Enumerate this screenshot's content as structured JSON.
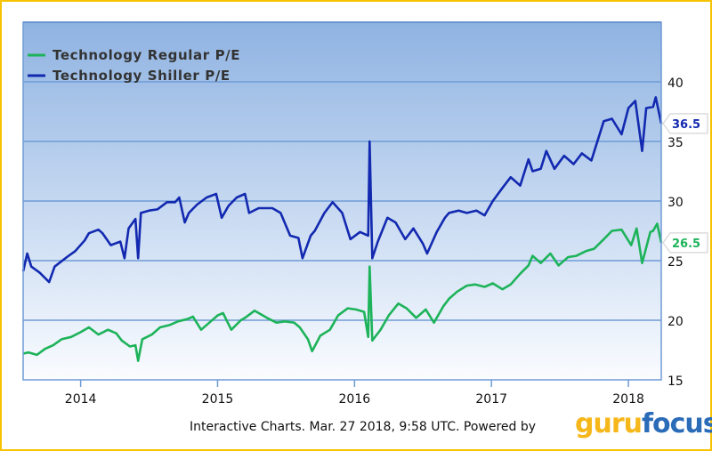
{
  "chart_data": {
    "type": "line",
    "title": "",
    "xlabel": "",
    "ylabel": "",
    "xlim": [
      2013.58,
      2018.24
    ],
    "ylim": [
      15,
      45
    ],
    "x_ticks": [
      2014,
      2015,
      2016,
      2017,
      2018
    ],
    "x_tick_labels": [
      "2014",
      "2015",
      "2016",
      "2017",
      "2018"
    ],
    "y_ticks": [
      15,
      20,
      25,
      30,
      35,
      40
    ],
    "y_tick_labels": [
      "15",
      "20",
      "25",
      "30",
      "35",
      "40"
    ],
    "grid": true,
    "legend_position": "top-left",
    "series": [
      {
        "name": "Technology Regular P/E",
        "color": "#1db35a",
        "last_value_label": "26.5",
        "x": [
          2013.58,
          2013.62,
          2013.68,
          2013.74,
          2013.8,
          2013.86,
          2013.93,
          2014.0,
          2014.06,
          2014.13,
          2014.2,
          2014.26,
          2014.3,
          2014.36,
          2014.4,
          2014.42,
          2014.45,
          2014.52,
          2014.58,
          2014.65,
          2014.71,
          2014.78,
          2014.82,
          2014.88,
          2014.95,
          2015.0,
          2015.04,
          2015.1,
          2015.17,
          2015.2,
          2015.27,
          2015.36,
          2015.43,
          2015.49,
          2015.56,
          2015.6,
          2015.66,
          2015.69,
          2015.75,
          2015.82,
          2015.88,
          2015.95,
          2016.01,
          2016.07,
          2016.1,
          2016.11,
          2016.13,
          2016.19,
          2016.25,
          2016.32,
          2016.38,
          2016.45,
          2016.49,
          2016.52,
          2016.58,
          2016.65,
          2016.69,
          2016.75,
          2016.82,
          2016.88,
          2016.95,
          2017.01,
          2017.08,
          2017.14,
          2017.21,
          2017.27,
          2017.3,
          2017.36,
          2017.43,
          2017.49,
          2017.56,
          2017.62,
          2017.69,
          2017.75,
          2017.82,
          2017.88,
          2017.95,
          2018.02,
          2018.06,
          2018.1,
          2018.16,
          2018.18,
          2018.21,
          2018.24
        ],
        "values": [
          17.2,
          17.3,
          17.1,
          17.6,
          17.9,
          18.4,
          18.6,
          19.0,
          19.4,
          18.8,
          19.2,
          18.9,
          18.3,
          17.8,
          17.9,
          16.6,
          18.4,
          18.8,
          19.4,
          19.6,
          19.9,
          20.1,
          20.3,
          19.2,
          19.9,
          20.4,
          20.6,
          19.2,
          20.0,
          20.2,
          20.8,
          20.2,
          19.8,
          19.9,
          19.8,
          19.4,
          18.4,
          17.4,
          18.7,
          19.2,
          20.4,
          21.0,
          20.9,
          20.7,
          18.6,
          24.5,
          18.3,
          19.2,
          20.4,
          21.4,
          21.0,
          20.2,
          20.6,
          20.9,
          19.8,
          21.2,
          21.8,
          22.4,
          22.9,
          23.0,
          22.8,
          23.1,
          22.6,
          23.0,
          23.9,
          24.6,
          25.4,
          24.8,
          25.6,
          24.6,
          25.3,
          25.4,
          25.8,
          26.0,
          26.8,
          27.5,
          27.6,
          26.3,
          27.7,
          24.8,
          27.4,
          27.5,
          28.1,
          26.5
        ]
      },
      {
        "name": "Technology Shiller P/E",
        "color": "#1229b0",
        "last_value_label": "36.5",
        "x": [
          2013.58,
          2013.61,
          2013.64,
          2013.7,
          2013.77,
          2013.81,
          2013.9,
          2013.96,
          2014.03,
          2014.06,
          2014.13,
          2014.16,
          2014.22,
          2014.29,
          2014.32,
          2014.35,
          2014.4,
          2014.42,
          2014.44,
          2014.5,
          2014.56,
          2014.63,
          2014.69,
          2014.72,
          2014.76,
          2014.79,
          2014.85,
          2014.92,
          2014.99,
          2015.03,
          2015.08,
          2015.14,
          2015.2,
          2015.23,
          2015.3,
          2015.4,
          2015.46,
          2015.53,
          2015.59,
          2015.62,
          2015.68,
          2015.71,
          2015.78,
          2015.84,
          2015.91,
          2015.97,
          2016.04,
          2016.1,
          2016.11,
          2016.13,
          2016.17,
          2016.24,
          2016.3,
          2016.37,
          2016.43,
          2016.5,
          2016.53,
          2016.6,
          2016.66,
          2016.69,
          2016.76,
          2016.82,
          2016.89,
          2016.95,
          2017.01,
          2017.08,
          2017.14,
          2017.21,
          2017.27,
          2017.3,
          2017.36,
          2017.4,
          2017.46,
          2017.53,
          2017.6,
          2017.66,
          2017.73,
          2017.76,
          2017.82,
          2017.88,
          2017.95,
          2018.0,
          2018.05,
          2018.1,
          2018.13,
          2018.18,
          2018.2,
          2018.24
        ],
        "values": [
          24.1,
          25.6,
          24.5,
          24.0,
          23.2,
          24.5,
          25.3,
          25.8,
          26.7,
          27.3,
          27.6,
          27.3,
          26.3,
          26.6,
          25.2,
          27.7,
          28.5,
          25.2,
          29.0,
          29.2,
          29.3,
          29.9,
          29.9,
          30.3,
          28.2,
          29.0,
          29.7,
          30.3,
          30.6,
          28.6,
          29.6,
          30.3,
          30.6,
          29.0,
          29.4,
          29.4,
          29.0,
          27.1,
          26.9,
          25.2,
          27.1,
          27.5,
          29.0,
          29.9,
          29.0,
          26.8,
          27.4,
          27.1,
          35.0,
          25.2,
          26.6,
          28.6,
          28.2,
          26.8,
          27.7,
          26.4,
          25.6,
          27.4,
          28.6,
          29.0,
          29.2,
          29.0,
          29.2,
          28.8,
          30.0,
          31.1,
          32.0,
          31.3,
          33.5,
          32.5,
          32.7,
          34.2,
          32.7,
          33.8,
          33.1,
          34.0,
          33.4,
          34.5,
          36.7,
          36.9,
          35.6,
          37.8,
          38.4,
          34.2,
          37.8,
          37.9,
          38.7,
          36.5
        ]
      }
    ]
  },
  "footer": {
    "text": "Interactive Charts. Mar. 27 2018, 9:58 UTC. Powered by",
    "logo_part1": "guru",
    "logo_part2": "focus"
  }
}
